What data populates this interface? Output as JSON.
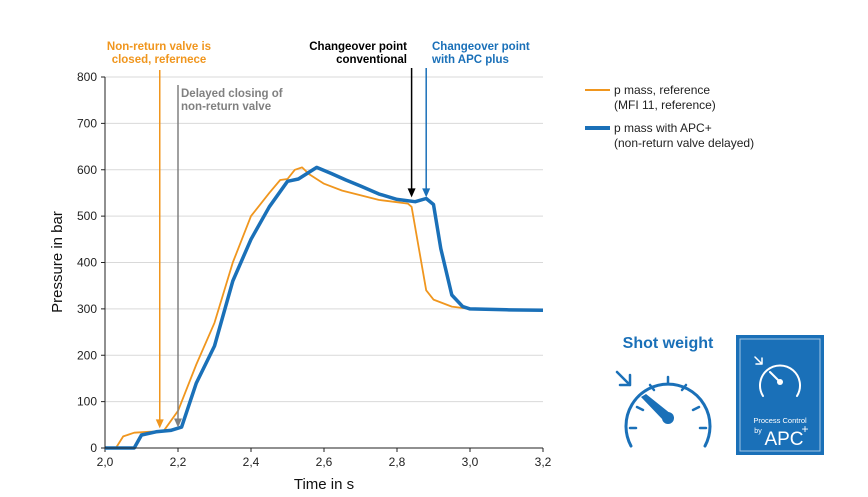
{
  "chart_data": {
    "type": "line",
    "xlabel": "Time in s",
    "ylabel": "Pressure in bar",
    "xlim": [
      2.0,
      3.2
    ],
    "ylim": [
      0,
      800
    ],
    "x_ticks": [
      "2,0",
      "2,2",
      "2,4",
      "2,6",
      "2,8",
      "3,0",
      "3,2"
    ],
    "y_ticks": [
      "0",
      "100",
      "200",
      "300",
      "400",
      "500",
      "600",
      "700",
      "800"
    ],
    "grid": "horizontal",
    "legend_position": "right",
    "series": [
      {
        "name": "p mass, reference",
        "name_line2": "(MFI 11, reference)",
        "color": "#f0961e",
        "points": [
          [
            2.0,
            0
          ],
          [
            2.03,
            0
          ],
          [
            2.05,
            25
          ],
          [
            2.08,
            33
          ],
          [
            2.12,
            35
          ],
          [
            2.16,
            36
          ],
          [
            2.2,
            80
          ],
          [
            2.25,
            180
          ],
          [
            2.3,
            270
          ],
          [
            2.35,
            400
          ],
          [
            2.4,
            500
          ],
          [
            2.45,
            550
          ],
          [
            2.48,
            578
          ],
          [
            2.5,
            580
          ],
          [
            2.52,
            600
          ],
          [
            2.54,
            605
          ],
          [
            2.56,
            590
          ],
          [
            2.6,
            570
          ],
          [
            2.65,
            555
          ],
          [
            2.7,
            545
          ],
          [
            2.75,
            535
          ],
          [
            2.8,
            530
          ],
          [
            2.83,
            527
          ],
          [
            2.84,
            520
          ],
          [
            2.86,
            430
          ],
          [
            2.88,
            340
          ],
          [
            2.9,
            320
          ],
          [
            2.95,
            305
          ],
          [
            3.0,
            300
          ],
          [
            3.1,
            298
          ],
          [
            3.2,
            297
          ]
        ]
      },
      {
        "name": "p mass with APC+",
        "name_line2": "(non-return valve delayed)",
        "color": "#1a70b8",
        "points": [
          [
            2.0,
            0
          ],
          [
            2.08,
            0
          ],
          [
            2.1,
            28
          ],
          [
            2.14,
            35
          ],
          [
            2.18,
            38
          ],
          [
            2.21,
            45
          ],
          [
            2.25,
            140
          ],
          [
            2.3,
            220
          ],
          [
            2.35,
            360
          ],
          [
            2.4,
            450
          ],
          [
            2.45,
            520
          ],
          [
            2.5,
            575
          ],
          [
            2.53,
            580
          ],
          [
            2.55,
            590
          ],
          [
            2.58,
            605
          ],
          [
            2.62,
            592
          ],
          [
            2.66,
            578
          ],
          [
            2.7,
            565
          ],
          [
            2.75,
            548
          ],
          [
            2.8,
            536
          ],
          [
            2.85,
            531
          ],
          [
            2.88,
            538
          ],
          [
            2.9,
            525
          ],
          [
            2.92,
            430
          ],
          [
            2.95,
            330
          ],
          [
            2.98,
            305
          ],
          [
            3.0,
            300
          ],
          [
            3.1,
            298
          ],
          [
            3.2,
            297
          ]
        ]
      }
    ],
    "annotations": [
      {
        "text_line1": "Non-return valve is",
        "text_line2": "closed, refernece",
        "x": 2.15,
        "color": "#f0961e"
      },
      {
        "text_line1": "Delayed closing of",
        "text_line2": "non-return valve",
        "x": 2.2,
        "color": "#808080"
      },
      {
        "text_line1": "Changeover point",
        "text_line2": "conventional",
        "x": 2.84,
        "color": "#000000"
      },
      {
        "text_line1": "Changeover point",
        "text_line2": "with APC plus",
        "x": 2.88,
        "color": "#1a70b8"
      }
    ]
  },
  "shot_weight": {
    "title": "Shot weight",
    "gauge_icon": "pressure-gauge-icon",
    "color": "#1a70b8"
  },
  "apc_logo": {
    "icon": "gauge-icon",
    "line1": "Process Control",
    "line2": "by",
    "brand": "APC",
    "sup": "+",
    "color": "#1a70b8"
  }
}
